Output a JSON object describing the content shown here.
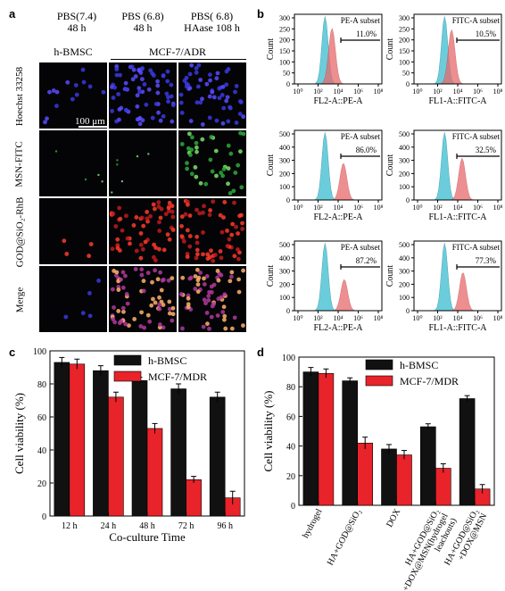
{
  "panels": {
    "a": "a",
    "b": "b",
    "c": "c",
    "d": "d"
  },
  "panel_a": {
    "columns": [
      {
        "header_line1": "PBS(7.4)",
        "header_line2": "48 h"
      },
      {
        "header_line1": "PBS (6.8)",
        "header_line2": "48 h"
      },
      {
        "header_line1": "PBS( 6.8)",
        "header_line2": "HAase 108 h"
      }
    ],
    "group_left": "h-BMSC",
    "group_right": "MCF-7/ADR",
    "rows": [
      "Hoechst 33258",
      "MSN-FITC",
      "GOD@SiO₂-RhB",
      "Merge"
    ],
    "scale_bar": "100 μm"
  },
  "panel_b": {
    "ylabel": "Count",
    "xlabel_pe": "FL2-A::PE-A",
    "xlabel_fitc": "FL1-A::FITC-A",
    "ticks_y": [
      "0",
      "50",
      "100",
      "150",
      "200",
      "250",
      "300"
    ],
    "ticks_y_tall": [
      "0",
      "100",
      "200",
      "300",
      "400",
      "500"
    ],
    "ticks_x": [
      "10⁰",
      "10²",
      "10⁴",
      "10⁶",
      "10⁸"
    ],
    "plots": [
      {
        "subset": "PE-A subset",
        "pct": "11.0%"
      },
      {
        "subset": "FITC-A subset",
        "pct": "10.5%"
      },
      {
        "subset": "PE-A subset",
        "pct": "86.0%"
      },
      {
        "subset": "FITC-A subset",
        "pct": "32.5%"
      },
      {
        "subset": "PE-A subset",
        "pct": "87.2%"
      },
      {
        "subset": "FITC-A subset",
        "pct": "77.3%"
      }
    ],
    "colors": {
      "control": "#5bc8d8",
      "sample": "#e8696b"
    }
  },
  "chart_data": [
    {
      "type": "bar",
      "panel": "c",
      "categories": [
        "12 h",
        "24 h",
        "48 h",
        "72 h",
        "96 h"
      ],
      "series": [
        {
          "name": "h-BMSC",
          "values": [
            93,
            88,
            82,
            77,
            72
          ],
          "errors": [
            3,
            3,
            2,
            3,
            3
          ],
          "color": "#111111"
        },
        {
          "name": "MCF-7/MDR",
          "values": [
            92,
            72,
            53,
            22,
            11
          ],
          "errors": [
            3,
            3,
            3,
            2,
            4
          ],
          "color": "#e8232a"
        }
      ],
      "xlabel": "Co-culture Time",
      "ylabel": "Cell viability (%)",
      "ylim": [
        0,
        100
      ],
      "yticks": [
        0,
        20,
        40,
        60,
        80,
        100
      ],
      "legend": "top-right"
    },
    {
      "type": "bar",
      "panel": "d",
      "categories": [
        "hydrogel",
        "HA+GOD@SiO₂",
        "DOX",
        "HA+GOD@SiO₂ +DOX@MSN(hydrogel leachouts)",
        "HA+GOD@SiO₂ +DOX@MSN"
      ],
      "category_lines": [
        [
          "hydrogel"
        ],
        [
          "HA+GOD@SiO₂"
        ],
        [
          "DOX"
        ],
        [
          "HA+GOD@SiO₂",
          "+DOX@MSN(hydrogel",
          "leachouts)"
        ],
        [
          "HA+GOD@SiO₂",
          "+DOX@MSN"
        ]
      ],
      "series": [
        {
          "name": "h-BMSC",
          "values": [
            90,
            84,
            38,
            53,
            72
          ],
          "errors": [
            3,
            2,
            3,
            2,
            2
          ],
          "color": "#111111"
        },
        {
          "name": "MCF-7/MDR",
          "values": [
            89,
            42,
            34,
            25,
            11
          ],
          "errors": [
            3,
            4,
            3,
            3,
            3
          ],
          "color": "#e8232a"
        }
      ],
      "xlabel": "",
      "ylabel": "Cell viability (%)",
      "ylim": [
        0,
        100
      ],
      "yticks": [
        0,
        20,
        40,
        60,
        80,
        100
      ],
      "legend": "top-right"
    }
  ]
}
